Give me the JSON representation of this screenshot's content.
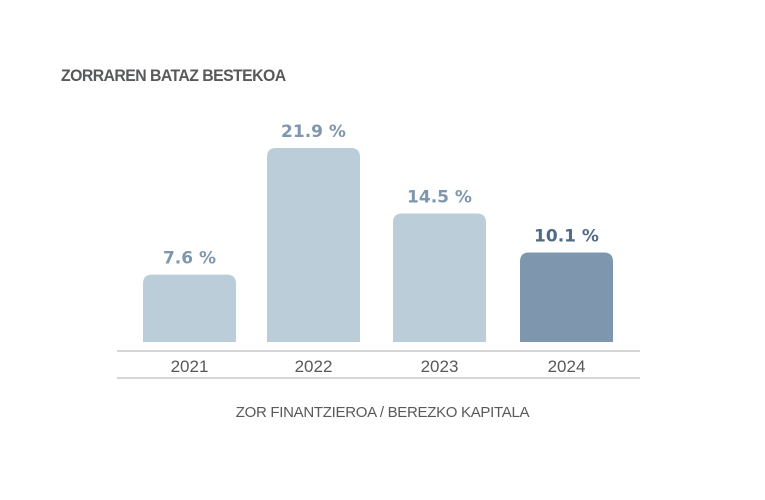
{
  "chart_data": {
    "type": "bar",
    "title": "ZORRAREN BATAZ BESTEKOA",
    "xlabel": "ZOR FINANTZIEROA / BEREZKO KAPITALA",
    "ylabel": "",
    "categories": [
      "2021",
      "2022",
      "2023",
      "2024"
    ],
    "values": [
      7.6,
      21.9,
      14.5,
      10.1
    ],
    "value_labels": [
      "7.6 %",
      "21.9 %",
      "14.5 %",
      "10.1 %"
    ],
    "unit": "%",
    "ylim": [
      0,
      21.9
    ],
    "grid": false,
    "highlight_index": 3,
    "colors": {
      "bar": "#bccdda",
      "bar_highlight": "#7f97ae",
      "label": "#7f97ae",
      "label_highlight": "#4f6b86",
      "axis_line": "#c8c8c8",
      "text": "#58595b"
    }
  }
}
